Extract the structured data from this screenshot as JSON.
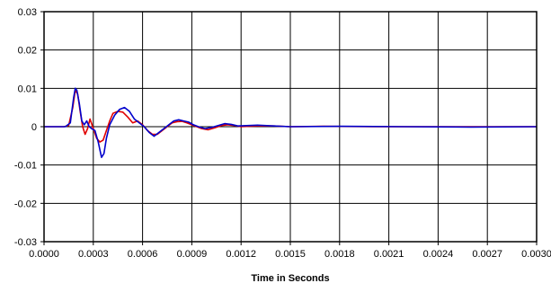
{
  "chart_data": {
    "type": "line",
    "title": "",
    "xlabel": "Time in Seconds",
    "ylabel": "",
    "xlim": [
      0,
      0.003
    ],
    "ylim": [
      -0.03,
      0.03
    ],
    "x_ticks": [
      "0.0000",
      "0.0003",
      "0.0006",
      "0.0009",
      "0.0012",
      "0.0015",
      "0.0018",
      "0.0021",
      "0.0024",
      "0.0027",
      "0.0030"
    ],
    "y_ticks": [
      "0.03",
      "0.02",
      "0.01",
      "0",
      "-0.01",
      "-0.02",
      "-0.03"
    ],
    "grid": true,
    "legend": "none",
    "series": [
      {
        "color": "#e00000",
        "points": [
          [
            0.0,
            0.0
          ],
          [
            0.00012,
            0.0
          ],
          [
            0.00015,
            0.0003
          ],
          [
            0.000175,
            0.005
          ],
          [
            0.00019,
            0.0095
          ],
          [
            0.000205,
            0.0085
          ],
          [
            0.00022,
            0.004
          ],
          [
            0.000235,
            0.0
          ],
          [
            0.00025,
            -0.002
          ],
          [
            0.000265,
            -0.0005
          ],
          [
            0.00028,
            0.002
          ],
          [
            0.0003,
            -0.0005
          ],
          [
            0.00032,
            -0.003
          ],
          [
            0.00034,
            -0.004
          ],
          [
            0.00036,
            -0.0035
          ],
          [
            0.00038,
            -0.001
          ],
          [
            0.0004,
            0.0015
          ],
          [
            0.00042,
            0.0035
          ],
          [
            0.00045,
            0.004
          ],
          [
            0.00048,
            0.0038
          ],
          [
            0.00051,
            0.0025
          ],
          [
            0.00054,
            0.001
          ],
          [
            0.00057,
            0.0015
          ],
          [
            0.0006,
            0.0005
          ],
          [
            0.00063,
            -0.001
          ],
          [
            0.00066,
            -0.002
          ],
          [
            0.00069,
            -0.002
          ],
          [
            0.00072,
            -0.001
          ],
          [
            0.00075,
            0.0
          ],
          [
            0.00078,
            0.001
          ],
          [
            0.00081,
            0.0013
          ],
          [
            0.00084,
            0.0014
          ],
          [
            0.00087,
            0.001
          ],
          [
            0.0009,
            0.0005
          ],
          [
            0.00093,
            0.0
          ],
          [
            0.00096,
            -0.0005
          ],
          [
            0.001,
            -0.0008
          ],
          [
            0.00104,
            -0.0003
          ],
          [
            0.00108,
            0.0003
          ],
          [
            0.00112,
            0.0005
          ],
          [
            0.00116,
            0.0003
          ],
          [
            0.0012,
            0.0
          ],
          [
            0.0013,
            0.0002
          ],
          [
            0.0014,
            0.0002
          ],
          [
            0.0015,
            0.0
          ],
          [
            0.0017,
            0.0001
          ],
          [
            0.002,
            0.0
          ],
          [
            0.0025,
            0.0
          ],
          [
            0.003,
            0.0
          ]
        ]
      },
      {
        "color": "#0000cc",
        "points": [
          [
            0.0,
            0.0
          ],
          [
            0.00013,
            0.0
          ],
          [
            0.00016,
            0.001
          ],
          [
            0.00018,
            0.0075
          ],
          [
            0.00019,
            0.01
          ],
          [
            0.0002,
            0.0095
          ],
          [
            0.000215,
            0.006
          ],
          [
            0.00023,
            0.0015
          ],
          [
            0.000245,
            0.0005
          ],
          [
            0.00026,
            0.0015
          ],
          [
            0.000275,
            0.0
          ],
          [
            0.00029,
            -0.0005
          ],
          [
            0.00031,
            -0.001
          ],
          [
            0.00033,
            -0.004
          ],
          [
            0.00035,
            -0.008
          ],
          [
            0.000365,
            -0.007
          ],
          [
            0.00038,
            -0.003
          ],
          [
            0.0004,
            0.0005
          ],
          [
            0.00043,
            0.003
          ],
          [
            0.00046,
            0.0045
          ],
          [
            0.00049,
            0.005
          ],
          [
            0.00052,
            0.004
          ],
          [
            0.00055,
            0.002
          ],
          [
            0.00058,
            0.001
          ],
          [
            0.00061,
            0.0
          ],
          [
            0.00064,
            -0.0015
          ],
          [
            0.00067,
            -0.0025
          ],
          [
            0.0007,
            -0.0015
          ],
          [
            0.00073,
            -0.0005
          ],
          [
            0.00076,
            0.0005
          ],
          [
            0.00079,
            0.0015
          ],
          [
            0.00082,
            0.0018
          ],
          [
            0.00085,
            0.0015
          ],
          [
            0.00088,
            0.0012
          ],
          [
            0.00091,
            0.0005
          ],
          [
            0.00094,
            0.0
          ],
          [
            0.00098,
            -0.0005
          ],
          [
            0.00102,
            -0.0002
          ],
          [
            0.00106,
            0.0003
          ],
          [
            0.0011,
            0.0008
          ],
          [
            0.00114,
            0.0006
          ],
          [
            0.00118,
            0.0002
          ],
          [
            0.0013,
            0.0004
          ],
          [
            0.0014,
            0.0002
          ],
          [
            0.0015,
            0.0
          ],
          [
            0.0018,
            0.0001
          ],
          [
            0.0022,
            0.0
          ],
          [
            0.0026,
            -0.0001
          ],
          [
            0.003,
            0.0
          ]
        ]
      }
    ]
  }
}
